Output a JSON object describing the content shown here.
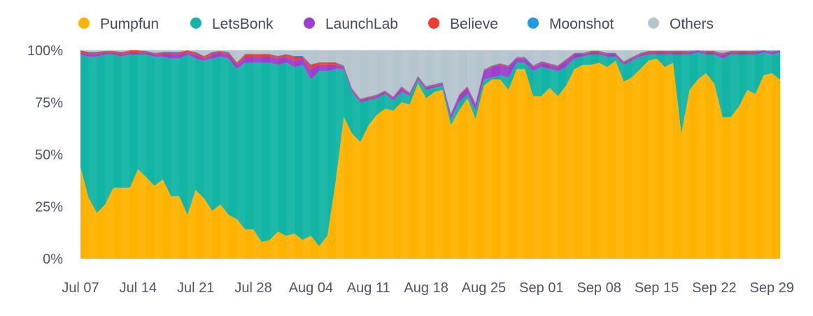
{
  "chart_data": {
    "type": "area",
    "stacked": true,
    "normalized": true,
    "grid": true,
    "legend_position": "top",
    "title": "",
    "xlabel": "",
    "ylabel": "",
    "ylim": [
      0,
      100
    ],
    "y_ticks": [
      "0%",
      "25%",
      "50%",
      "75%",
      "100%"
    ],
    "x_ticks": [
      "Jul 07",
      "Jul 14",
      "Jul 21",
      "Jul 28",
      "Aug 04",
      "Aug 11",
      "Aug 18",
      "Aug 25",
      "Sep 01",
      "Sep 08",
      "Sep 15",
      "Sep 22",
      "Sep 29"
    ],
    "x": [
      "Jul 07",
      "Jul 08",
      "Jul 09",
      "Jul 10",
      "Jul 11",
      "Jul 12",
      "Jul 13",
      "Jul 14",
      "Jul 15",
      "Jul 16",
      "Jul 17",
      "Jul 18",
      "Jul 19",
      "Jul 20",
      "Jul 21",
      "Jul 22",
      "Jul 23",
      "Jul 24",
      "Jul 25",
      "Jul 26",
      "Jul 27",
      "Jul 28",
      "Jul 29",
      "Jul 30",
      "Jul 31",
      "Aug 01",
      "Aug 02",
      "Aug 03",
      "Aug 04",
      "Aug 05",
      "Aug 06",
      "Aug 07",
      "Aug 08",
      "Aug 09",
      "Aug 10",
      "Aug 11",
      "Aug 12",
      "Aug 13",
      "Aug 14",
      "Aug 15",
      "Aug 16",
      "Aug 17",
      "Aug 18",
      "Aug 19",
      "Aug 20",
      "Aug 21",
      "Aug 22",
      "Aug 23",
      "Aug 24",
      "Aug 25",
      "Aug 26",
      "Aug 27",
      "Aug 28",
      "Aug 29",
      "Aug 30",
      "Aug 31",
      "Sep 01",
      "Sep 02",
      "Sep 03",
      "Sep 04",
      "Sep 05",
      "Sep 06",
      "Sep 07",
      "Sep 08",
      "Sep 09",
      "Sep 10",
      "Sep 11",
      "Sep 12",
      "Sep 13",
      "Sep 14",
      "Sep 15",
      "Sep 16",
      "Sep 17",
      "Sep 18",
      "Sep 19",
      "Sep 20",
      "Sep 21",
      "Sep 22",
      "Sep 23",
      "Sep 24",
      "Sep 25",
      "Sep 26",
      "Sep 27",
      "Sep 28",
      "Sep 29",
      "Sep 30"
    ],
    "series": [
      {
        "name": "Pumpfun",
        "color": "#FFB300",
        "values": [
          44,
          29,
          22,
          26,
          34,
          34,
          34,
          43,
          39,
          35,
          38,
          30,
          30,
          21,
          33,
          29,
          23,
          26,
          21,
          19,
          14,
          14,
          8,
          9,
          13,
          11,
          12,
          9,
          11,
          6,
          11,
          37,
          68,
          60,
          56,
          64,
          69,
          72,
          71,
          75,
          74,
          84,
          77,
          80,
          81,
          64,
          71,
          77,
          67,
          83,
          86,
          86,
          81,
          91,
          91,
          78,
          78,
          82,
          78,
          83,
          91,
          93,
          93,
          94,
          92,
          95,
          85,
          87,
          91,
          95,
          96,
          92,
          94,
          60,
          81,
          86,
          89,
          84,
          68,
          68,
          73,
          81,
          79,
          88,
          89,
          86
        ]
      },
      {
        "name": "LetsBonk",
        "color": "#12B5A5",
        "values": [
          54,
          68,
          75,
          72,
          64,
          63,
          64,
          55,
          59,
          62,
          59,
          66,
          66,
          77,
          63,
          66,
          73,
          71,
          75,
          72,
          80,
          80,
          86,
          85,
          80,
          83,
          80,
          84,
          75,
          84,
          79,
          54,
          23,
          20,
          19,
          12,
          8,
          7,
          5,
          5,
          4,
          2,
          4,
          2,
          2,
          3,
          4,
          2,
          4,
          3,
          1,
          2,
          6,
          3,
          3,
          12,
          14,
          9,
          12,
          9,
          5,
          4,
          5,
          4,
          5,
          2,
          8,
          8,
          6,
          3,
          2,
          6,
          4,
          38,
          17,
          13,
          9,
          14,
          28,
          30,
          25,
          17,
          19,
          11,
          9,
          13
        ]
      },
      {
        "name": "LaunchLab",
        "color": "#9C3FD1",
        "values": [
          1,
          1,
          1,
          1,
          1,
          1,
          1,
          1,
          1,
          1,
          1,
          2,
          2,
          1,
          2,
          1,
          2,
          2,
          2,
          2,
          3,
          3,
          3,
          3,
          3,
          3,
          3,
          3,
          5,
          3,
          3,
          2,
          1,
          1,
          1,
          1,
          1,
          1,
          1,
          2,
          1,
          1,
          1,
          1,
          1,
          2,
          3,
          3,
          3,
          4,
          5,
          5,
          5,
          2,
          2,
          2,
          2,
          2,
          2,
          3,
          2,
          1,
          1,
          1,
          1,
          1,
          1,
          1,
          1,
          1,
          1,
          1,
          1,
          1,
          1,
          1,
          1,
          1,
          2,
          1,
          1,
          1,
          1,
          1,
          1,
          1
        ]
      },
      {
        "name": "Believe",
        "color": "#F23A2E",
        "values": [
          1,
          1,
          1,
          0.5,
          0.5,
          1,
          1,
          1,
          0.5,
          0.5,
          1,
          1,
          1,
          1,
          1,
          1,
          1,
          0.5,
          1,
          1,
          1,
          1,
          1,
          1,
          1,
          1,
          2,
          1,
          2,
          1,
          1,
          1,
          0.5,
          0.5,
          0.5,
          0.5,
          0.5,
          0.5,
          0.5,
          0.5,
          0.5,
          0.5,
          0.5,
          0.5,
          0.5,
          0.5,
          0.5,
          0.5,
          0.5,
          0.5,
          0.5,
          0.5,
          0.5,
          0.5,
          0.5,
          0.5,
          0.5,
          0.5,
          0.5,
          0.5,
          0.5,
          0.5,
          0.5,
          0.5,
          0.5,
          0.5,
          0.5,
          0.5,
          0.5,
          0.5,
          0.5,
          0.5,
          0.5,
          0.5,
          0.5,
          0.5,
          0.5,
          0.5,
          0.5,
          0.5,
          0.5,
          0.5,
          0.5,
          0.5,
          0.5,
          0.5
        ]
      },
      {
        "name": "Moonshot",
        "color": "#1C9BE3",
        "values": [
          0.3,
          0.3,
          0.3,
          0.3,
          0.3,
          0.3,
          0.3,
          0.3,
          0.3,
          0.3,
          0.3,
          0.3,
          0.3,
          0.3,
          0.3,
          0.3,
          0.3,
          0.3,
          0.3,
          0.3,
          0.3,
          0.3,
          0.3,
          0.3,
          0.3,
          0.3,
          0.3,
          0.3,
          0.3,
          0.3,
          0.3,
          0.3,
          0.3,
          0.3,
          0.3,
          0.3,
          0.3,
          0.3,
          0.3,
          0.3,
          0.3,
          0.3,
          0.3,
          0.3,
          0.3,
          0.3,
          0.3,
          0.3,
          0.3,
          0.3,
          0.3,
          0.3,
          0.3,
          0.3,
          0.3,
          0.3,
          0.3,
          0.3,
          0.3,
          0.3,
          0.3,
          0.3,
          0.3,
          0.3,
          0.3,
          0.3,
          0.3,
          0.3,
          0.3,
          0.3,
          0.3,
          0.3,
          0.3,
          0.3,
          0.3,
          0.3,
          0.3,
          0.3,
          0.3,
          0.3,
          0.3,
          0.3,
          0.3,
          0.3,
          0.3,
          0.3
        ]
      },
      {
        "name": "Others",
        "color": "#B5C5CE",
        "values": "remainder"
      }
    ]
  }
}
